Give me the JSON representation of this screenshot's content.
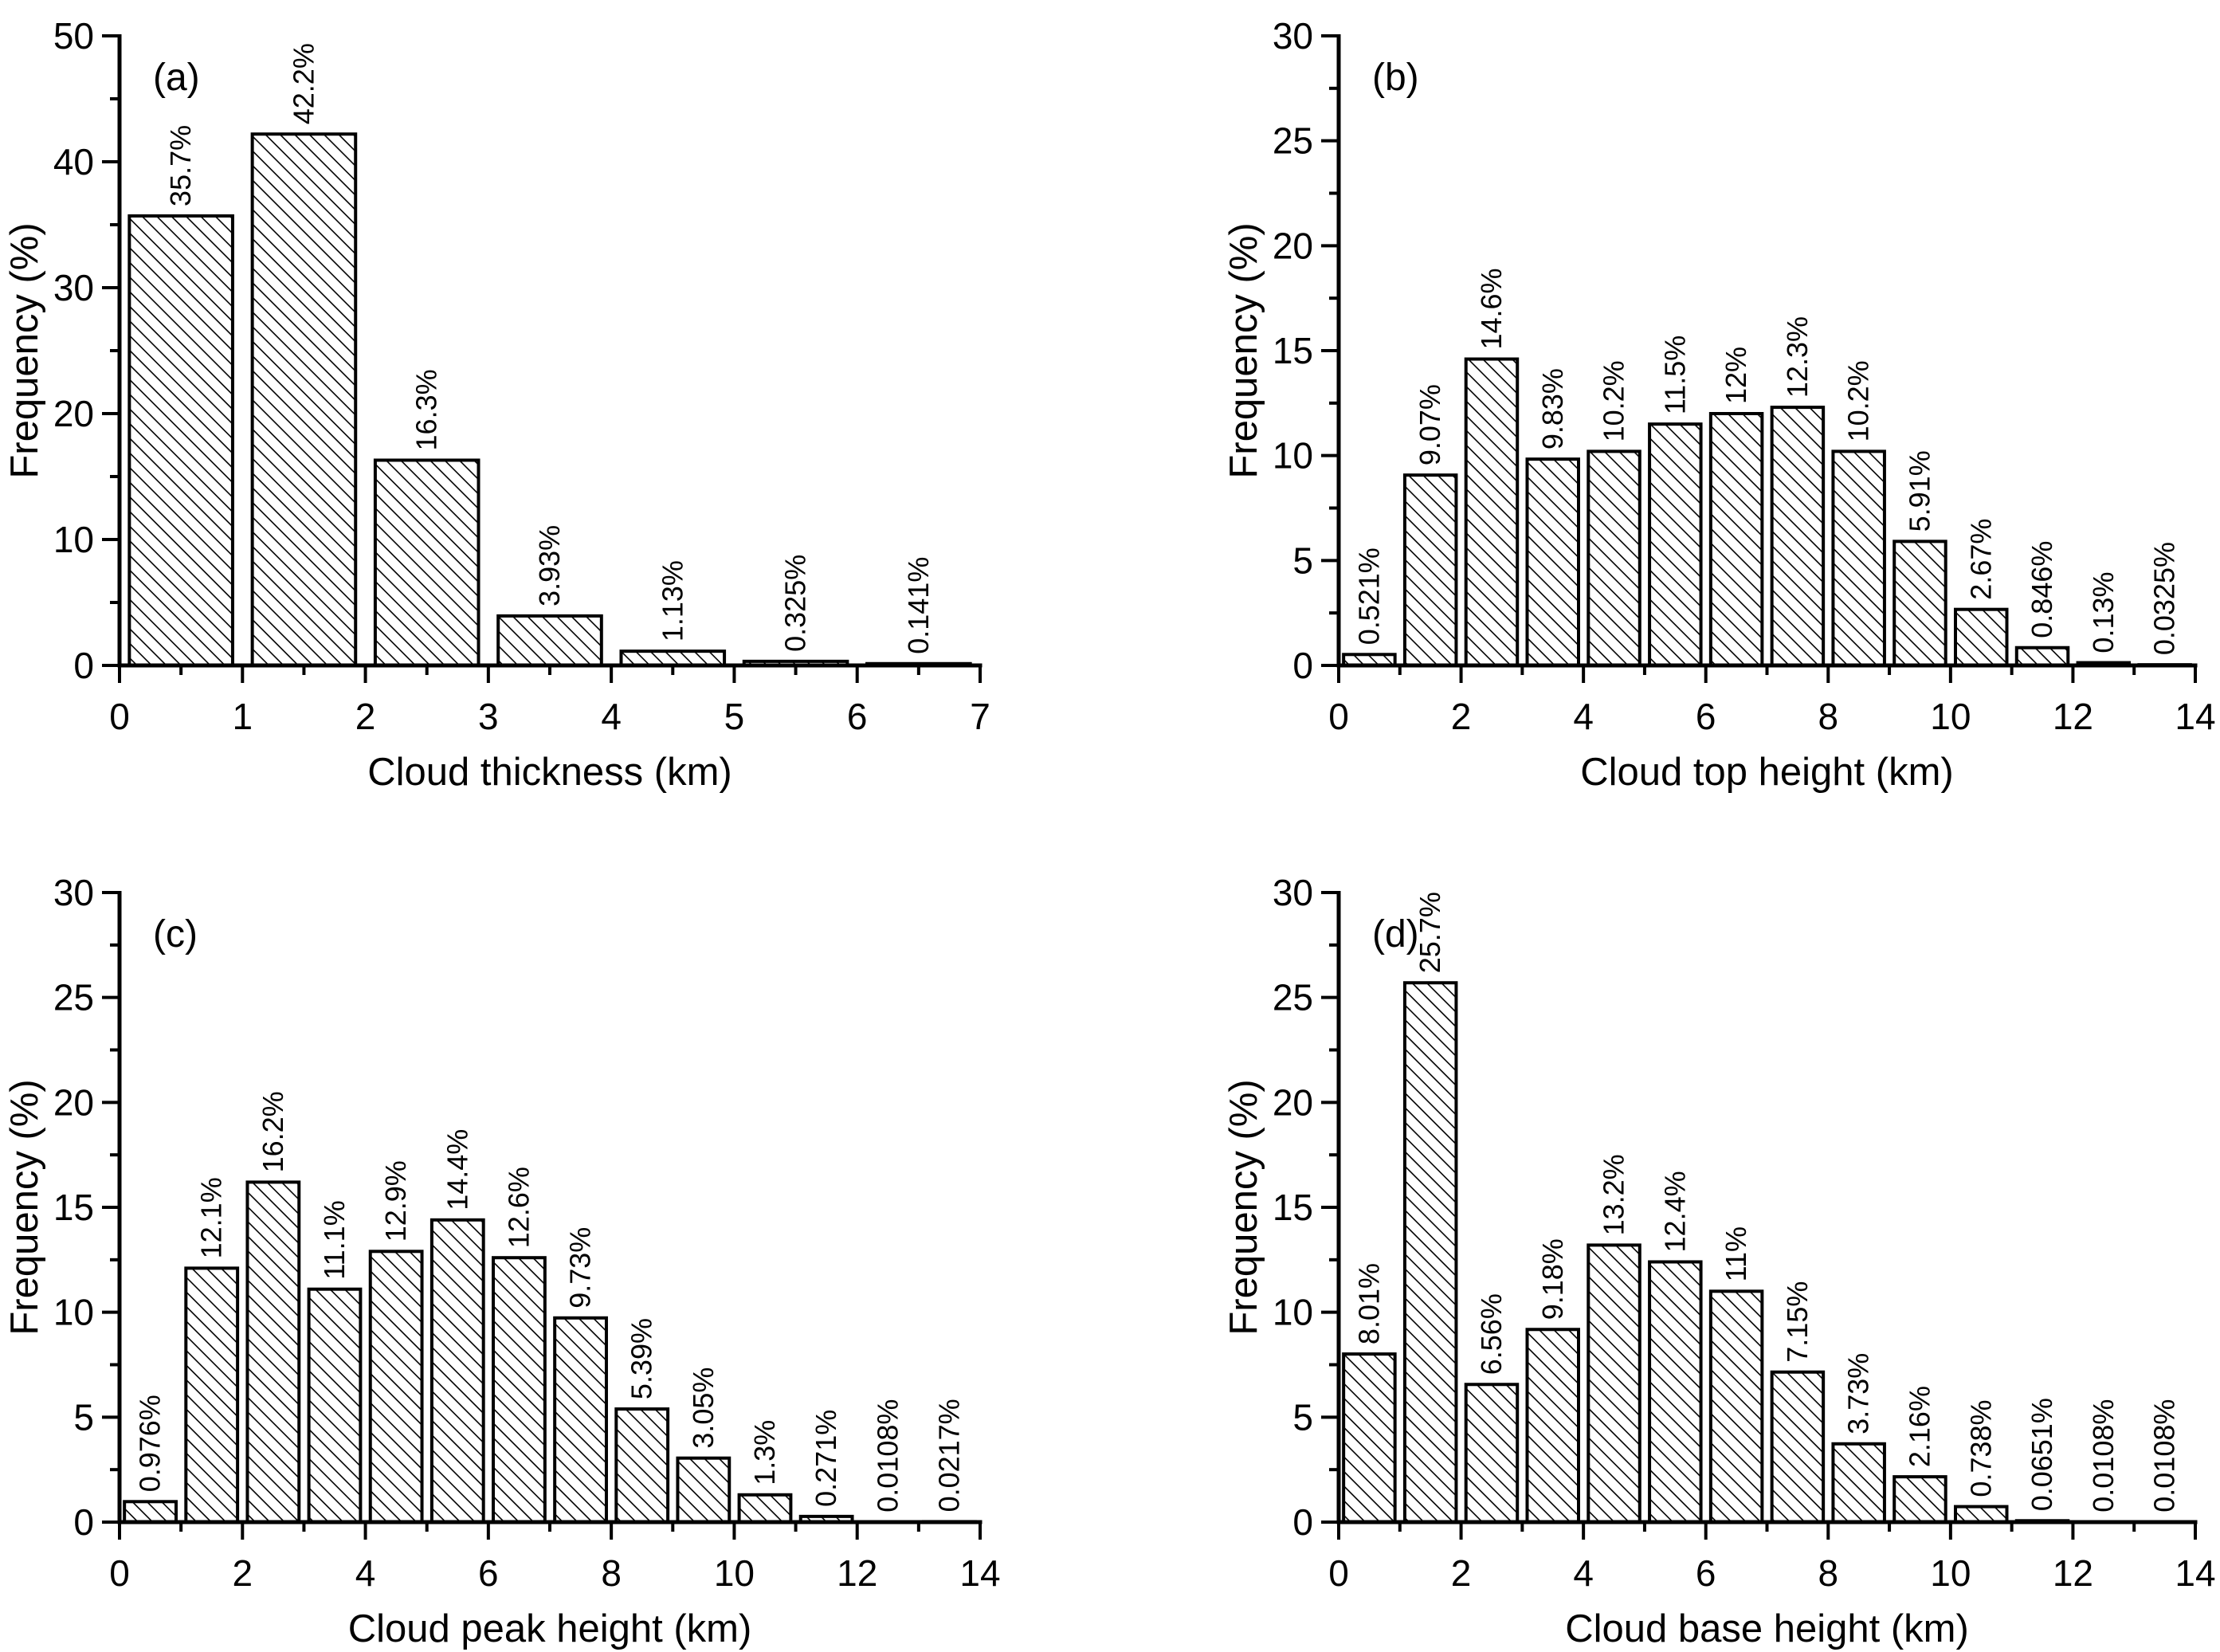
{
  "figure": {
    "background_color": "#ffffff",
    "ink_color": "#000000",
    "bar_fill": "#ffffff",
    "bar_hatch": "diagonal-backslash",
    "panels_order": [
      "a",
      "b",
      "c",
      "d"
    ]
  },
  "chart_data": [
    {
      "id": "a",
      "type": "bar",
      "panel_label": "(a)",
      "xlabel": "Cloud thickness (km)",
      "ylabel": "Frequency (%)",
      "xlim": [
        0,
        7
      ],
      "ylim": [
        0,
        50
      ],
      "x_major_tick_step": 1,
      "x_minor_tick_step": 0.5,
      "y_major_tick_step": 10,
      "y_minor_tick_step": 5,
      "bin_start": 0,
      "bin_width_km": 1,
      "grid": false,
      "legend": null,
      "values": [
        35.7,
        42.2,
        16.3,
        3.93,
        1.13,
        0.325,
        0.141
      ],
      "labels": [
        "35.7%",
        "42.2%",
        "16.3%",
        "3.93%",
        "1.13%",
        "0.325%",
        "0.141%"
      ]
    },
    {
      "id": "b",
      "type": "bar",
      "panel_label": "(b)",
      "xlabel": "Cloud top height (km)",
      "ylabel": "Frequency (%)",
      "xlim": [
        0,
        14
      ],
      "ylim": [
        0,
        30
      ],
      "x_major_tick_step": 2,
      "x_minor_tick_step": 1,
      "y_major_tick_step": 5,
      "y_minor_tick_step": 2.5,
      "bin_start": 0,
      "bin_width_km": 1,
      "grid": false,
      "legend": null,
      "values": [
        0.521,
        9.07,
        14.6,
        9.83,
        10.2,
        11.5,
        12,
        12.3,
        10.2,
        5.91,
        2.67,
        0.846,
        0.13,
        0.0325
      ],
      "labels": [
        "0.521%",
        "9.07%",
        "14.6%",
        "9.83%",
        "10.2%",
        "11.5%",
        "12%",
        "12.3%",
        "10.2%",
        "5.91%",
        "2.67%",
        "0.846%",
        "0.13%",
        "0.0325%"
      ]
    },
    {
      "id": "c",
      "type": "bar",
      "panel_label": "(c)",
      "xlabel": "Cloud peak height (km)",
      "ylabel": "Frequency (%)",
      "xlim": [
        0,
        14
      ],
      "ylim": [
        0,
        30
      ],
      "x_major_tick_step": 2,
      "x_minor_tick_step": 1,
      "y_major_tick_step": 5,
      "y_minor_tick_step": 2.5,
      "bin_start": 0,
      "bin_width_km": 1,
      "grid": false,
      "legend": null,
      "values": [
        0.976,
        12.1,
        16.2,
        11.1,
        12.9,
        14.4,
        12.6,
        9.73,
        5.39,
        3.05,
        1.3,
        0.271,
        0.0108,
        0.0217
      ],
      "labels": [
        "0.976%",
        "12.1%",
        "16.2%",
        "11.1%",
        "12.9%",
        "14.4%",
        "12.6%",
        "9.73%",
        "5.39%",
        "3.05%",
        "1.3%",
        "0.271%",
        "0.0108%",
        "0.0217%"
      ]
    },
    {
      "id": "d",
      "type": "bar",
      "panel_label": "(d)",
      "xlabel": "Cloud base height (km)",
      "ylabel": "Frequency (%)",
      "xlim": [
        0,
        14
      ],
      "ylim": [
        0,
        30
      ],
      "x_major_tick_step": 2,
      "x_minor_tick_step": 1,
      "y_major_tick_step": 5,
      "y_minor_tick_step": 2.5,
      "bin_start": 0,
      "bin_width_km": 1,
      "grid": false,
      "legend": null,
      "values": [
        8.01,
        25.7,
        6.56,
        9.18,
        13.2,
        12.4,
        11,
        7.15,
        3.73,
        2.16,
        0.738,
        0.0651,
        0.0108,
        0.0108
      ],
      "labels": [
        "8.01%",
        "25.7%",
        "6.56%",
        "9.18%",
        "13.2%",
        "12.4%",
        "11%",
        "7.15%",
        "3.73%",
        "2.16%",
        "0.738%",
        "0.0651%",
        "0.0108%",
        "0.0108%"
      ]
    }
  ]
}
